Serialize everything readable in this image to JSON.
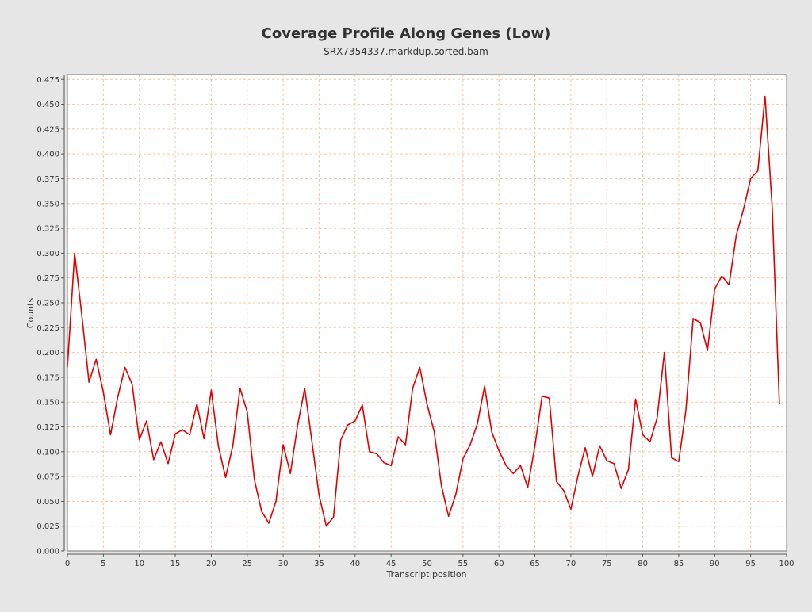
{
  "chart_data": {
    "type": "line",
    "title": "Coverage Profile Along Genes (Low)",
    "subtitle": "SRX7354337.markdup.sorted.bam",
    "xlabel": "Transcript position",
    "ylabel": "Counts",
    "xlim": [
      0,
      100
    ],
    "ylim": [
      0,
      0.48
    ],
    "xticks": [
      0,
      5,
      10,
      15,
      20,
      25,
      30,
      35,
      40,
      45,
      50,
      55,
      60,
      65,
      70,
      75,
      80,
      85,
      90,
      95,
      100
    ],
    "yticks": [
      0.0,
      0.025,
      0.05,
      0.075,
      0.1,
      0.125,
      0.15,
      0.175,
      0.2,
      0.225,
      0.25,
      0.275,
      0.3,
      0.325,
      0.35,
      0.375,
      0.4,
      0.425,
      0.45,
      0.475
    ],
    "xtick_labels": [
      "0",
      "5",
      "10",
      "15",
      "20",
      "25",
      "30",
      "35",
      "40",
      "45",
      "50",
      "55",
      "60",
      "65",
      "70",
      "75",
      "80",
      "85",
      "90",
      "95",
      "100"
    ],
    "ytick_labels": [
      "0.000",
      "0.025",
      "0.050",
      "0.075",
      "0.100",
      "0.125",
      "0.150",
      "0.175",
      "0.200",
      "0.225",
      "0.250",
      "0.275",
      "0.300",
      "0.325",
      "0.350",
      "0.375",
      "0.400",
      "0.425",
      "0.450",
      "0.475"
    ],
    "grid": true,
    "legend": "none",
    "colors": {
      "line": "#e00000",
      "grid": "#f2c6a6",
      "plot_background": "#ffffff",
      "page_background": "#e6e6e6",
      "text": "#333333"
    },
    "series": [
      {
        "x": [
          0,
          1,
          2,
          3,
          4,
          5,
          6,
          7,
          8,
          9,
          10,
          11,
          12,
          13,
          14,
          15,
          16,
          17,
          18,
          19,
          20,
          21,
          22,
          23,
          24,
          25,
          26,
          27,
          28,
          29,
          30,
          31,
          32,
          33,
          34,
          35,
          36,
          37,
          38,
          39,
          40,
          41,
          42,
          43,
          44,
          45,
          46,
          47,
          48,
          49,
          50,
          51,
          52,
          53,
          54,
          55,
          56,
          57,
          58,
          59,
          60,
          61,
          62,
          63,
          64,
          65,
          66,
          67,
          68,
          69,
          70,
          71,
          72,
          73,
          74,
          75,
          76,
          77,
          78,
          79,
          80,
          81,
          82,
          83,
          84,
          85,
          86,
          87,
          88,
          89,
          90,
          91,
          92,
          93,
          94,
          95,
          96,
          97,
          98,
          99
        ],
        "values": [
          0.185,
          0.3,
          0.238,
          0.17,
          0.193,
          0.16,
          0.117,
          0.155,
          0.185,
          0.168,
          0.112,
          0.131,
          0.092,
          0.11,
          0.088,
          0.118,
          0.122,
          0.117,
          0.148,
          0.113,
          0.162,
          0.105,
          0.074,
          0.106,
          0.164,
          0.14,
          0.072,
          0.04,
          0.028,
          0.05,
          0.107,
          0.078,
          0.126,
          0.164,
          0.11,
          0.056,
          0.025,
          0.034,
          0.112,
          0.127,
          0.131,
          0.147,
          0.1,
          0.098,
          0.089,
          0.086,
          0.115,
          0.107,
          0.164,
          0.185,
          0.148,
          0.12,
          0.066,
          0.035,
          0.057,
          0.093,
          0.107,
          0.128,
          0.166,
          0.12,
          0.101,
          0.086,
          0.078,
          0.086,
          0.064,
          0.106,
          0.156,
          0.154,
          0.07,
          0.061,
          0.042,
          0.076,
          0.104,
          0.075,
          0.106,
          0.091,
          0.088,
          0.063,
          0.082,
          0.153,
          0.117,
          0.11,
          0.134,
          0.2,
          0.094,
          0.09,
          0.142,
          0.234,
          0.23,
          0.202,
          0.264,
          0.277,
          0.268,
          0.318,
          0.344,
          0.375,
          0.383,
          0.458,
          0.345,
          0.148
        ]
      }
    ]
  }
}
